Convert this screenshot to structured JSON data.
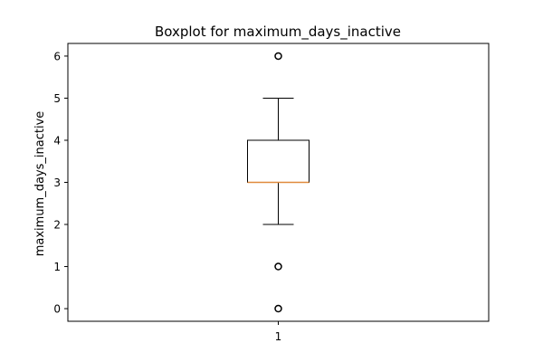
{
  "chart_data": {
    "type": "boxplot",
    "title": "Boxplot for maximum_days_inactive",
    "xlabel": "",
    "ylabel": "maximum_days_inactive",
    "categories": [
      "1"
    ],
    "ylim": [
      -0.3,
      6.3
    ],
    "yticks": [
      0,
      1,
      2,
      3,
      4,
      5,
      6
    ],
    "ytick_labels": [
      "0",
      "1",
      "2",
      "3",
      "4",
      "5",
      "6"
    ],
    "grid": false,
    "series": [
      {
        "name": "1",
        "whisker_low": 2,
        "q1": 3,
        "median": 3,
        "q3": 4,
        "whisker_high": 5,
        "outliers": [
          0,
          1,
          6
        ]
      }
    ]
  },
  "colors": {
    "median": "#e08a3c",
    "box": "#000000",
    "background": "#ffffff"
  }
}
